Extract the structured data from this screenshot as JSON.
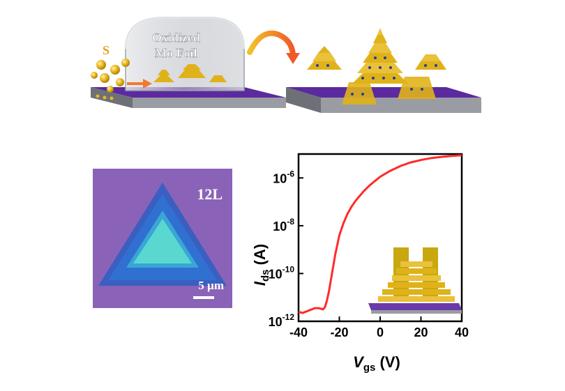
{
  "scene": {
    "sulfur_label": "S",
    "foil_label_line1": "Oxidized",
    "foil_label_line2": "Mo Foil",
    "colors": {
      "substrate": "#5b2a9e",
      "sulfur": "#e0b21a",
      "arrow": "#f07a2a",
      "foil": "#c9cbd1"
    }
  },
  "micrograph": {
    "layer_label": "12L",
    "scale_label": "5 µm",
    "colors": {
      "background": "#8a63b8",
      "outer": "#2f67c8",
      "inner": "#5ad8d0"
    }
  },
  "chart_data": {
    "type": "line",
    "xlabel_main": "V",
    "xlabel_sub": "gs",
    "xlabel_unit": " (V)",
    "ylabel_main": "I",
    "ylabel_sub": "ds",
    "ylabel_unit": " (A)",
    "xlim": [
      -40,
      40
    ],
    "ylim_log10": [
      -12,
      -5
    ],
    "yscale": "log",
    "x_ticks": [
      "-40",
      "-20",
      "0",
      "20",
      "40"
    ],
    "x_tick_values": [
      -40,
      -20,
      0,
      20,
      40
    ],
    "y_tick_exponents": [
      -12,
      -10,
      -8,
      -6
    ],
    "y_tick_base": "10",
    "y_tick_labels": [
      "-12",
      "-10",
      "-8",
      "-6"
    ],
    "series": [
      {
        "color": "#ff2a2a",
        "x": [
          -40,
          -38,
          -35,
          -32,
          -30,
          -28,
          -27,
          -26,
          -25,
          -24,
          -23,
          -22,
          -21,
          -20,
          -18,
          -16,
          -14,
          -12,
          -10,
          -8,
          -5,
          0,
          5,
          10,
          15,
          20,
          25,
          30,
          35,
          40
        ],
        "log10_y": [
          -11.6,
          -11.65,
          -11.55,
          -11.45,
          -11.45,
          -11.5,
          -11.4,
          -11.1,
          -10.7,
          -10.2,
          -9.7,
          -9.2,
          -8.8,
          -8.4,
          -7.9,
          -7.5,
          -7.2,
          -6.95,
          -6.75,
          -6.55,
          -6.3,
          -5.95,
          -5.7,
          -5.5,
          -5.35,
          -5.25,
          -5.17,
          -5.12,
          -5.08,
          -5.05
        ]
      }
    ]
  }
}
